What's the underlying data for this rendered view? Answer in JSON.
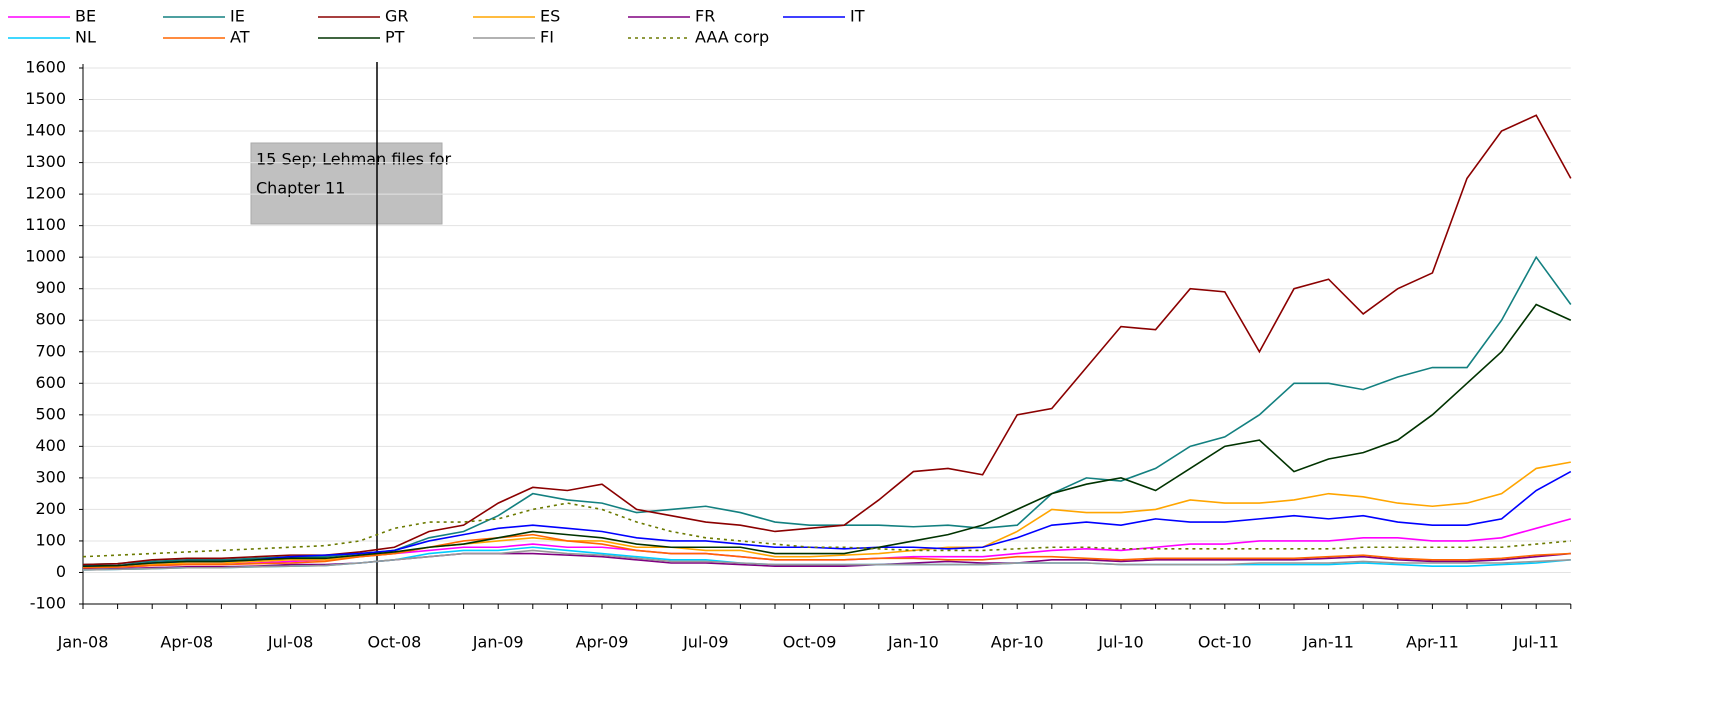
{
  "chart_data": {
    "type": "line",
    "categories": [
      "Jan-08",
      null,
      null,
      "Apr-08",
      null,
      null,
      "Jul-08",
      null,
      null,
      "Oct-08",
      null,
      null,
      "Jan-09",
      null,
      null,
      "Apr-09",
      null,
      null,
      "Jul-09",
      null,
      null,
      "Oct-09",
      null,
      null,
      "Jan-10",
      null,
      null,
      "Apr-10",
      null,
      null,
      "Jul-10",
      null,
      null,
      "Oct-10",
      null,
      null,
      "Jan-11",
      null,
      null,
      "Apr-11",
      null,
      null,
      "Jul-11",
      null
    ],
    "ylim": [
      -100,
      1600
    ],
    "yticks": [
      -100,
      0,
      100,
      200,
      300,
      400,
      500,
      600,
      700,
      800,
      900,
      1000,
      1100,
      1200,
      1300,
      1400,
      1500,
      1600
    ],
    "grid": true,
    "annotation": [
      "15 Sep; Lehman files for",
      "Chapter 11"
    ],
    "series": [
      {
        "name": "BE",
        "color": "#ff00ff",
        "values": [
          15,
          17,
          22,
          25,
          25,
          30,
          35,
          40,
          50,
          60,
          70,
          80,
          80,
          90,
          80,
          80,
          70,
          60,
          60,
          50,
          40,
          40,
          40,
          45,
          50,
          50,
          50,
          60,
          70,
          75,
          70,
          80,
          90,
          90,
          100,
          100,
          100,
          110,
          110,
          100,
          100,
          110,
          140,
          170
        ]
      },
      {
        "name": "IE",
        "color": "#138080",
        "values": [
          25,
          28,
          35,
          40,
          40,
          45,
          50,
          50,
          60,
          70,
          110,
          130,
          180,
          250,
          230,
          220,
          190,
          200,
          210,
          190,
          160,
          150,
          150,
          150,
          145,
          150,
          140,
          150,
          250,
          300,
          290,
          330,
          400,
          430,
          500,
          600,
          600,
          580,
          620,
          650,
          650,
          800,
          1000,
          850
        ]
      },
      {
        "name": "GR",
        "color": "#8b0000",
        "values": [
          25,
          28,
          40,
          45,
          45,
          50,
          55,
          55,
          65,
          80,
          130,
          150,
          220,
          270,
          260,
          280,
          200,
          180,
          160,
          150,
          130,
          140,
          150,
          230,
          320,
          330,
          310,
          500,
          520,
          650,
          780,
          770,
          900,
          890,
          700,
          900,
          930,
          820,
          900,
          950,
          1250,
          1400,
          1450,
          1250
        ]
      },
      {
        "name": "ES",
        "color": "#ffa500",
        "values": [
          15,
          18,
          25,
          30,
          30,
          35,
          40,
          40,
          50,
          60,
          80,
          90,
          100,
          110,
          100,
          100,
          80,
          80,
          70,
          70,
          50,
          50,
          55,
          60,
          70,
          80,
          80,
          130,
          200,
          190,
          190,
          200,
          230,
          220,
          220,
          230,
          250,
          240,
          220,
          210,
          220,
          250,
          330,
          350
        ]
      },
      {
        "name": "FR",
        "color": "#800080",
        "values": [
          10,
          12,
          15,
          18,
          18,
          20,
          25,
          25,
          30,
          40,
          50,
          60,
          60,
          60,
          55,
          50,
          40,
          30,
          30,
          25,
          20,
          20,
          20,
          25,
          30,
          35,
          30,
          30,
          40,
          40,
          35,
          40,
          40,
          40,
          40,
          40,
          45,
          50,
          40,
          35,
          35,
          40,
          50,
          60
        ]
      },
      {
        "name": "IT",
        "color": "#0000ff",
        "values": [
          20,
          22,
          30,
          35,
          35,
          40,
          50,
          55,
          60,
          70,
          100,
          120,
          140,
          150,
          140,
          130,
          110,
          100,
          100,
          90,
          80,
          80,
          75,
          80,
          80,
          75,
          80,
          110,
          150,
          160,
          150,
          170,
          160,
          160,
          170,
          180,
          170,
          180,
          160,
          150,
          150,
          170,
          260,
          320
        ]
      },
      {
        "name": "NL",
        "color": "#00ccff",
        "values": [
          8,
          10,
          12,
          15,
          15,
          18,
          20,
          22,
          30,
          40,
          60,
          70,
          70,
          80,
          70,
          60,
          50,
          40,
          40,
          30,
          25,
          25,
          25,
          25,
          25,
          25,
          25,
          30,
          30,
          30,
          25,
          25,
          25,
          25,
          25,
          25,
          25,
          30,
          25,
          20,
          20,
          25,
          30,
          40
        ]
      },
      {
        "name": "AT",
        "color": "#ff6600",
        "values": [
          15,
          17,
          22,
          25,
          25,
          28,
          30,
          35,
          50,
          60,
          80,
          100,
          110,
          120,
          100,
          90,
          70,
          60,
          60,
          50,
          40,
          40,
          40,
          45,
          45,
          40,
          40,
          50,
          50,
          45,
          40,
          45,
          45,
          45,
          45,
          45,
          50,
          55,
          45,
          40,
          40,
          45,
          55,
          60
        ]
      },
      {
        "name": "PT",
        "color": "#003300",
        "values": [
          20,
          22,
          30,
          35,
          35,
          40,
          45,
          45,
          55,
          65,
          80,
          90,
          110,
          130,
          120,
          110,
          90,
          80,
          80,
          80,
          60,
          60,
          60,
          80,
          100,
          120,
          150,
          200,
          250,
          280,
          300,
          260,
          330,
          400,
          420,
          320,
          360,
          380,
          420,
          500,
          600,
          700,
          850,
          800
        ]
      },
      {
        "name": "FI",
        "color": "#999999",
        "values": [
          8,
          10,
          12,
          15,
          15,
          18,
          20,
          22,
          30,
          40,
          50,
          60,
          60,
          70,
          60,
          55,
          45,
          35,
          35,
          30,
          25,
          25,
          25,
          25,
          25,
          25,
          25,
          30,
          30,
          30,
          25,
          25,
          25,
          25,
          30,
          30,
          30,
          35,
          30,
          30,
          30,
          30,
          35,
          40
        ]
      },
      {
        "name": "AAA corp",
        "color": "#6b7a00",
        "dashed": true,
        "values": [
          50,
          55,
          60,
          65,
          70,
          75,
          80,
          85,
          100,
          140,
          160,
          160,
          170,
          200,
          220,
          200,
          160,
          130,
          110,
          100,
          90,
          80,
          80,
          75,
          70,
          70,
          70,
          75,
          80,
          80,
          75,
          75,
          75,
          75,
          75,
          75,
          75,
          80,
          80,
          80,
          80,
          80,
          90,
          100
        ]
      }
    ]
  }
}
